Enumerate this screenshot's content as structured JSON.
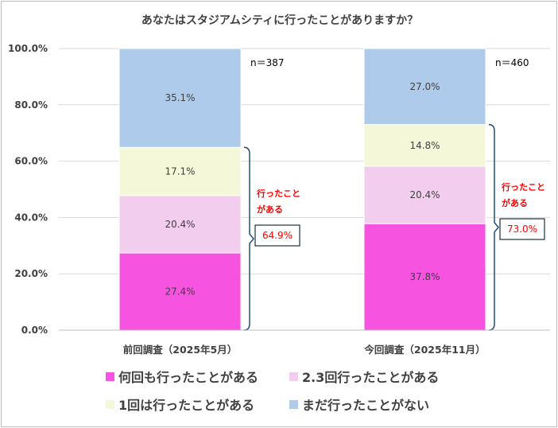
{
  "chart_data": {
    "type": "bar",
    "stacked": true,
    "title": "あなたはスタジアムシティに行ったことがありますか？",
    "categories": [
      "前回調査（2025年5月）",
      "今回調査（2025年11月）"
    ],
    "series": [
      {
        "name": "何回も行ったことがある",
        "values": [
          27.4,
          37.8
        ],
        "labels": [
          "27.4%",
          "37.8%"
        ],
        "color": "#f553e0"
      },
      {
        "name": "2.3回行ったことがある",
        "values": [
          20.4,
          20.4
        ],
        "labels": [
          "20.4%",
          "20.4%"
        ],
        "color": "#f2cdee"
      },
      {
        "name": "1回は行ったことがある",
        "values": [
          17.1,
          14.8
        ],
        "labels": [
          "17.1%",
          "14.8%"
        ],
        "color": "#f4f8d8"
      },
      {
        "name": "まだ行ったことがない",
        "values": [
          35.1,
          27.0
        ],
        "labels": [
          "35.1%",
          "27.0%"
        ],
        "color": "#aecbeb"
      }
    ],
    "ylim": [
      0,
      100
    ],
    "yticks": [
      "0.0%",
      "20.0%",
      "40.0%",
      "60.0%",
      "80.0%",
      "100.0%"
    ],
    "grid": true,
    "legend_position": "bottom",
    "sample_sizes": [
      "n＝387",
      "n＝460"
    ],
    "annotations": [
      {
        "text": "行ったこと\nがある",
        "value": "64.9%"
      },
      {
        "text": "行ったこと\nがある",
        "value": "73.0%"
      }
    ],
    "annotation_color": "#ff0000",
    "bracket_color": "#1f4e79"
  }
}
